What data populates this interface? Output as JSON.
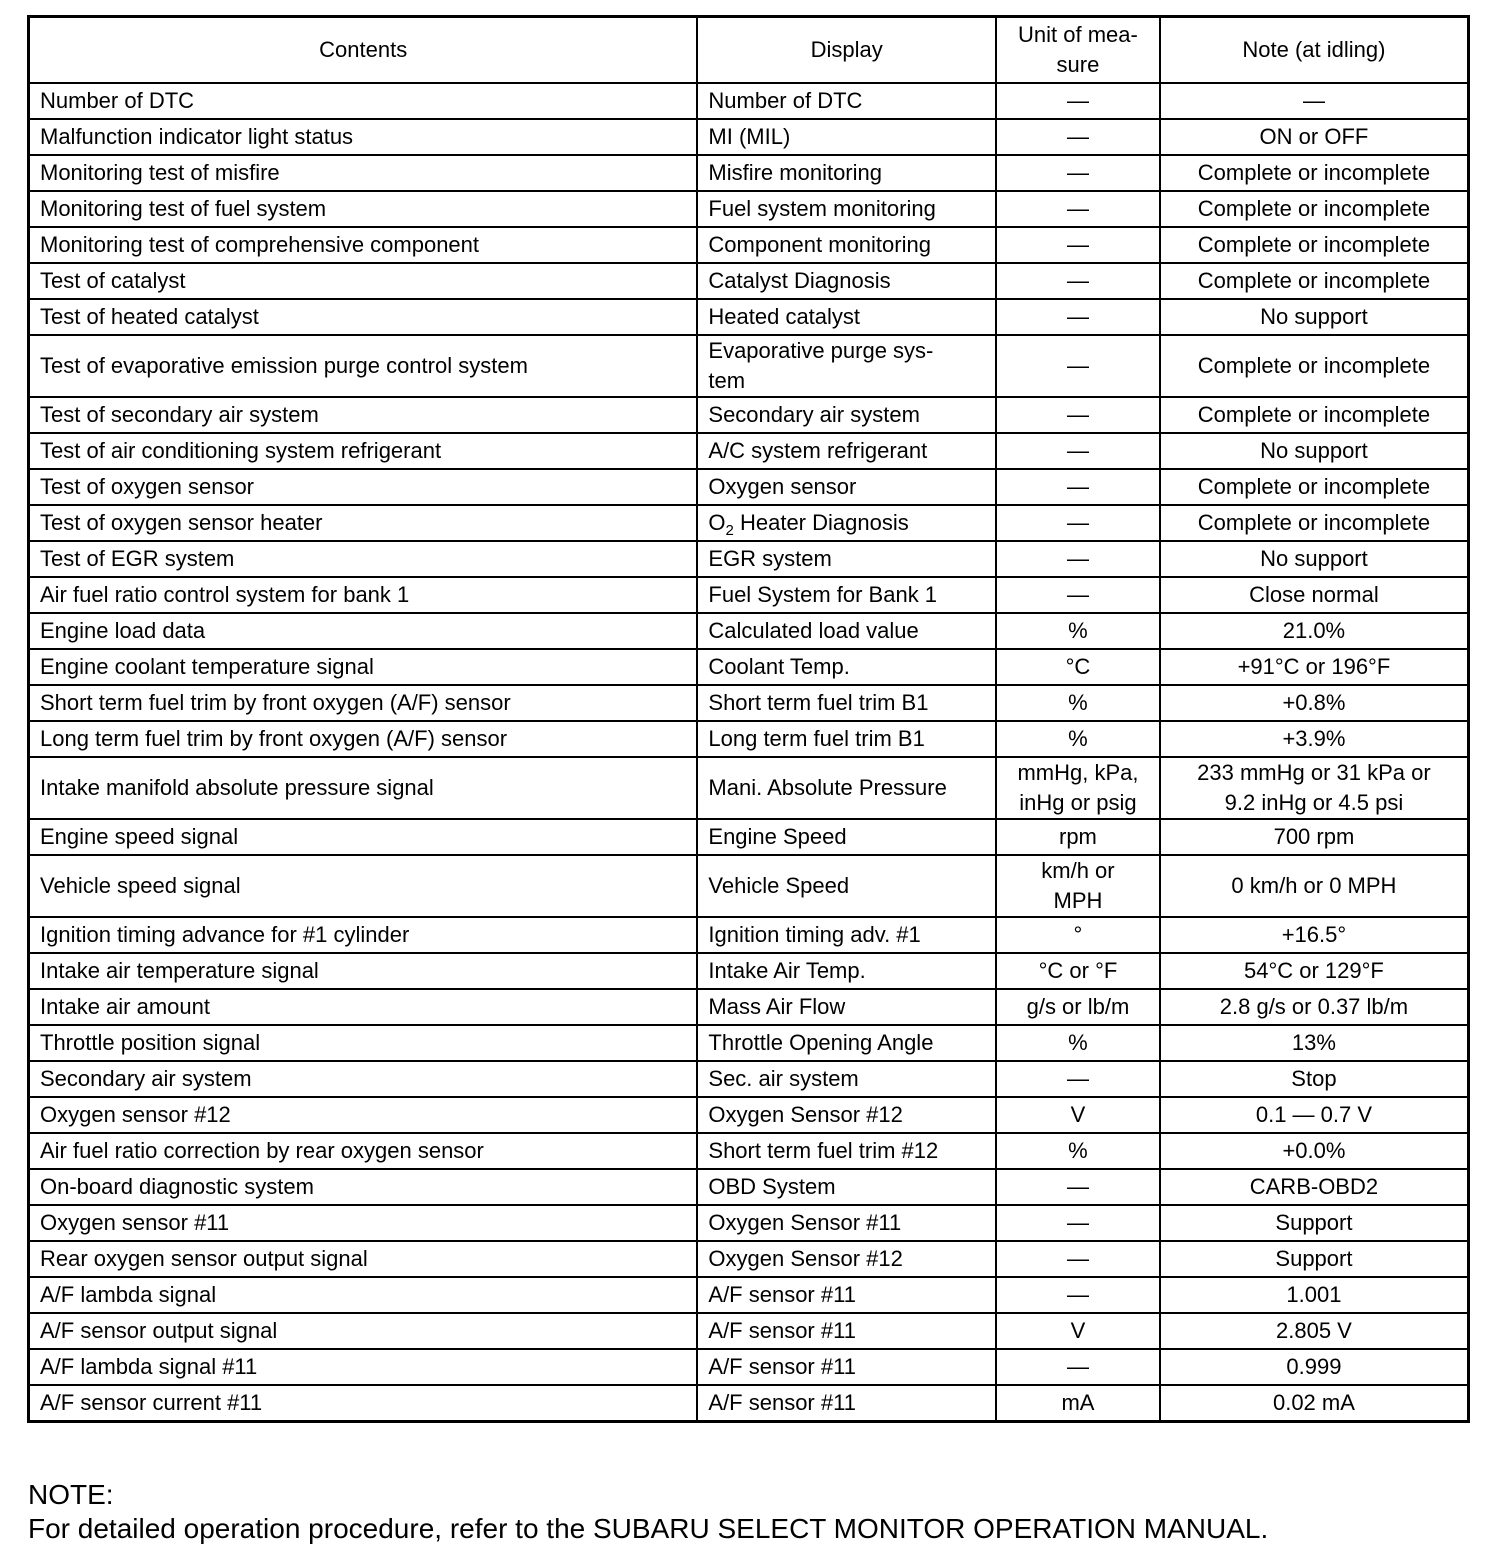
{
  "table": {
    "headers": [
      "Contents",
      "Display",
      "Unit of mea-\nsure",
      "Note (at idling)"
    ],
    "rows": [
      [
        "Number of DTC",
        "Number of DTC",
        "—",
        "—"
      ],
      [
        "Malfunction indicator light status",
        "MI (MIL)",
        "—",
        "ON or OFF"
      ],
      [
        "Monitoring test of misfire",
        "Misfire monitoring",
        "—",
        "Complete or incomplete"
      ],
      [
        "Monitoring test of fuel system",
        "Fuel system monitoring",
        "—",
        "Complete or incomplete"
      ],
      [
        "Monitoring test of comprehensive component",
        "Component monitoring",
        "—",
        "Complete or incomplete"
      ],
      [
        "Test of catalyst",
        "Catalyst Diagnosis",
        "—",
        "Complete or incomplete"
      ],
      [
        "Test of heated catalyst",
        "Heated catalyst",
        "—",
        "No support"
      ],
      [
        "Test of evaporative emission purge control system",
        "Evaporative purge sys-\ntem",
        "—",
        "Complete or incomplete"
      ],
      [
        "Test of secondary air system",
        "Secondary air system",
        "—",
        "Complete or incomplete"
      ],
      [
        "Test of air conditioning system refrigerant",
        "A/C system refrigerant",
        "—",
        "No support"
      ],
      [
        "Test of oxygen sensor",
        "Oxygen sensor",
        "—",
        "Complete or incomplete"
      ],
      [
        "Test of oxygen sensor heater",
        {
          "pre": "O",
          "sub": "2",
          "post": " Heater Diagnosis"
        },
        "—",
        "Complete or incomplete"
      ],
      [
        "Test of EGR system",
        "EGR system",
        "—",
        "No support"
      ],
      [
        "Air fuel ratio control system for bank 1",
        "Fuel System for Bank 1",
        "—",
        "Close normal"
      ],
      [
        "Engine load data",
        "Calculated load value",
        "%",
        "21.0%"
      ],
      [
        "Engine coolant temperature signal",
        "Coolant Temp.",
        "°C",
        "+91°C or 196°F"
      ],
      [
        "Short term fuel trim by front oxygen (A/F) sensor",
        "Short term fuel trim B1",
        "%",
        "+0.8%"
      ],
      [
        "Long term fuel trim by front oxygen (A/F) sensor",
        "Long term fuel trim B1",
        "%",
        "+3.9%"
      ],
      [
        "Intake manifold absolute pressure signal",
        "Mani. Absolute Pressure",
        "mmHg, kPa,\ninHg or psig",
        "233 mmHg or 31 kPa or\n9.2 inHg or 4.5 psi"
      ],
      [
        "Engine speed signal",
        "Engine Speed",
        "rpm",
        "700 rpm"
      ],
      [
        "Vehicle speed signal",
        "Vehicle Speed",
        "km/h or\nMPH",
        "0 km/h or 0 MPH"
      ],
      [
        "Ignition timing advance for #1 cylinder",
        "Ignition timing adv. #1",
        "°",
        "+16.5°"
      ],
      [
        "Intake air temperature signal",
        "Intake Air Temp.",
        "°C or °F",
        "54°C or 129°F"
      ],
      [
        "Intake air amount",
        "Mass Air Flow",
        "g/s or lb/m",
        "2.8 g/s or 0.37 lb/m"
      ],
      [
        "Throttle position signal",
        "Throttle Opening Angle",
        "%",
        "13%"
      ],
      [
        "Secondary air system",
        "Sec. air system",
        "—",
        "Stop"
      ],
      [
        "Oxygen sensor #12",
        "Oxygen Sensor #12",
        "V",
        "0.1 — 0.7 V"
      ],
      [
        "Air fuel ratio correction by rear oxygen sensor",
        "Short term fuel trim #12",
        "%",
        "+0.0%"
      ],
      [
        "On-board diagnostic system",
        "OBD System",
        "—",
        "CARB-OBD2"
      ],
      [
        "Oxygen sensor #11",
        "Oxygen Sensor #11",
        "—",
        "Support"
      ],
      [
        "Rear oxygen sensor output signal",
        "Oxygen Sensor #12",
        "—",
        "Support"
      ],
      [
        "A/F lambda signal",
        "A/F sensor #11",
        "—",
        "1.001"
      ],
      [
        "A/F sensor output signal",
        "A/F sensor #11",
        "V",
        "2.805 V"
      ],
      [
        "A/F lambda signal #11",
        "A/F sensor #11",
        "—",
        "0.999"
      ],
      [
        "A/F sensor current #11",
        "A/F sensor #11",
        "mA",
        "0.02 mA"
      ]
    ]
  },
  "note": {
    "label": "NOTE:",
    "text": "For detailed operation procedure, refer to the SUBARU SELECT MONITOR OPERATION MANUAL."
  }
}
